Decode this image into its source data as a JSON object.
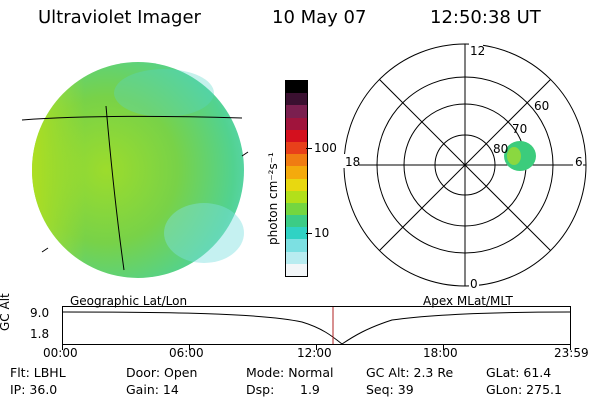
{
  "header": {
    "instrument": "Ultraviolet Imager",
    "date": "10 May 07",
    "time": "12:50:38 UT"
  },
  "colorbar": {
    "unit_label": "photon cm⁻²s⁻¹",
    "ticks": [
      "100",
      "10"
    ],
    "colors": [
      "#000000",
      "#3a1030",
      "#7a1f4f",
      "#a0143c",
      "#d4101e",
      "#e8401a",
      "#f07c12",
      "#f4aa0c",
      "#e8d810",
      "#b2e01a",
      "#74d640",
      "#3ccc86",
      "#30d2c4",
      "#7ce0e2",
      "#b8ecf0",
      "#f2f6f8"
    ]
  },
  "polar_plot": {
    "mlt_labels": {
      "top": "12",
      "left": "18",
      "bottom": "0",
      "right": "6"
    },
    "lat_labels": [
      "60",
      "70",
      "80"
    ]
  },
  "timeline": {
    "ylabel": "GC Alt",
    "y_ticks": [
      "9.0",
      "1.8"
    ],
    "left_title": "Geographic Lat/Lon",
    "right_title": "Apex MLat/MLT",
    "x_ticks": [
      "00:00",
      "06:00",
      "12:00",
      "18:00",
      "23:59"
    ]
  },
  "info": {
    "flt": "Flt: LBHL",
    "ip": "IP: 36.0",
    "door": "Door: Open",
    "gain": "Gain: 14",
    "mode": "Mode: Normal",
    "dsp_label": "Dsp:",
    "dsp_value": "1.9",
    "gc_alt": "GC Alt: 2.3 Re",
    "seq": "Seq: 39",
    "glat": "GLat:  61.4",
    "glon": "GLon: 275.1"
  },
  "colors": {
    "disk_fill": "#7ad24a",
    "disk_light": "#48d8b4",
    "disk_bright": "#b8e020",
    "spot": "#3cc878",
    "marker": "#b02020"
  }
}
